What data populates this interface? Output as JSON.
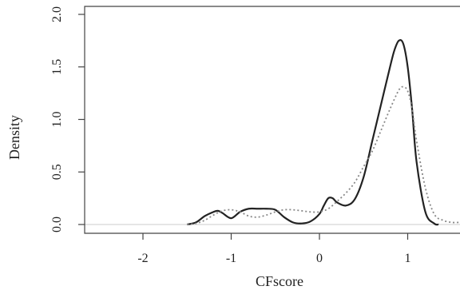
{
  "chart_data": {
    "type": "line",
    "title": "",
    "xlabel": "CFscore",
    "ylabel": "Density",
    "xlim": [
      -2.6,
      1.6
    ],
    "ylim": [
      0,
      2.0
    ],
    "x_ticks": [
      -2,
      -1,
      0,
      1
    ],
    "x_tick_labels": [
      "-2",
      "-1",
      "0",
      "1"
    ],
    "y_ticks": [
      0.0,
      0.5,
      1.0,
      1.5,
      2.0
    ],
    "y_tick_labels": [
      "0.0",
      "0.5",
      "1.0",
      "1.5",
      "2.0"
    ],
    "grid": false,
    "baseline": 0,
    "series": [
      {
        "style": "solid",
        "color": "#222222",
        "x": [
          -1.5,
          -1.4,
          -1.3,
          -1.2,
          -1.15,
          -1.1,
          -1.0,
          -0.9,
          -0.8,
          -0.7,
          -0.6,
          -0.5,
          -0.4,
          -0.3,
          -0.2,
          -0.1,
          0.0,
          0.05,
          0.1,
          0.15,
          0.2,
          0.3,
          0.4,
          0.5,
          0.6,
          0.7,
          0.8,
          0.85,
          0.9,
          0.95,
          1.0,
          1.05,
          1.1,
          1.2,
          1.3,
          1.35
        ],
        "y": [
          0.0,
          0.02,
          0.08,
          0.12,
          0.13,
          0.11,
          0.06,
          0.12,
          0.15,
          0.15,
          0.15,
          0.14,
          0.07,
          0.02,
          0.01,
          0.03,
          0.1,
          0.18,
          0.25,
          0.25,
          0.21,
          0.18,
          0.24,
          0.45,
          0.8,
          1.15,
          1.5,
          1.66,
          1.75,
          1.72,
          1.5,
          1.1,
          0.6,
          0.12,
          0.01,
          0.0
        ]
      },
      {
        "style": "dotted",
        "color": "#888888",
        "x": [
          -1.5,
          -1.4,
          -1.3,
          -1.2,
          -1.1,
          -1.0,
          -0.9,
          -0.8,
          -0.7,
          -0.6,
          -0.5,
          -0.4,
          -0.3,
          -0.2,
          -0.1,
          0.0,
          0.1,
          0.2,
          0.3,
          0.4,
          0.5,
          0.6,
          0.7,
          0.8,
          0.9,
          0.95,
          1.0,
          1.05,
          1.1,
          1.2,
          1.3,
          1.4,
          1.5,
          1.6
        ],
        "y": [
          0.0,
          0.01,
          0.04,
          0.09,
          0.13,
          0.14,
          0.12,
          0.08,
          0.07,
          0.09,
          0.12,
          0.14,
          0.14,
          0.13,
          0.12,
          0.12,
          0.15,
          0.22,
          0.3,
          0.4,
          0.55,
          0.7,
          0.9,
          1.1,
          1.28,
          1.31,
          1.27,
          1.1,
          0.8,
          0.35,
          0.1,
          0.04,
          0.02,
          0.02
        ]
      }
    ]
  }
}
